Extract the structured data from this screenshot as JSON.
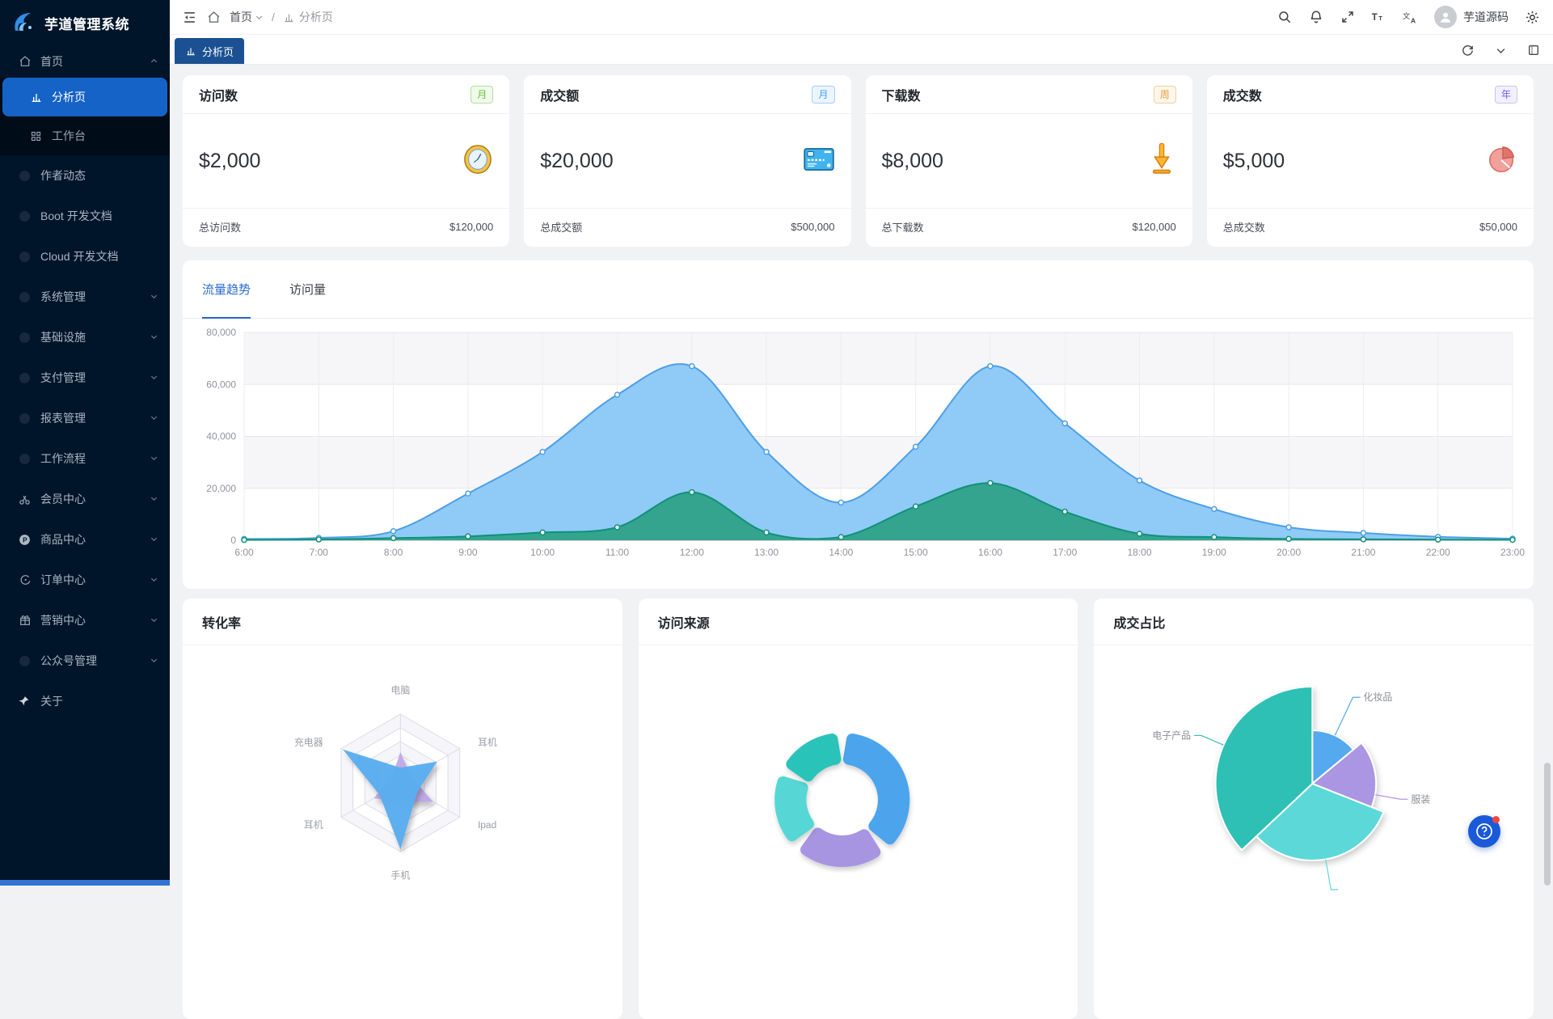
{
  "app": {
    "title": "芋道管理系统"
  },
  "header": {
    "breadcrumb": {
      "home": "首页",
      "separator": "/",
      "current": "分析页"
    },
    "user_name": "芋道源码"
  },
  "tabbar": {
    "active_tab": "分析页"
  },
  "sidebar": {
    "items": [
      {
        "label": "首页",
        "icon": "home",
        "chevron": "up",
        "expanded": true,
        "children": [
          {
            "label": "分析页",
            "icon": "chart",
            "active": true
          },
          {
            "label": "工作台",
            "icon": "grid"
          }
        ]
      },
      {
        "label": "作者动态",
        "icon": "dot"
      },
      {
        "label": "Boot 开发文档",
        "icon": "dot"
      },
      {
        "label": "Cloud 开发文档",
        "icon": "dot"
      },
      {
        "label": "系统管理",
        "icon": "dot",
        "chevron": "down"
      },
      {
        "label": "基础设施",
        "icon": "dot",
        "chevron": "down"
      },
      {
        "label": "支付管理",
        "icon": "dot",
        "chevron": "down"
      },
      {
        "label": "报表管理",
        "icon": "dot",
        "chevron": "down"
      },
      {
        "label": "工作流程",
        "icon": "dot",
        "chevron": "down"
      },
      {
        "label": "会员中心",
        "icon": "member",
        "chevron": "down"
      },
      {
        "label": "商品中心",
        "icon": "product",
        "chevron": "down"
      },
      {
        "label": "订单中心",
        "icon": "order",
        "chevron": "down"
      },
      {
        "label": "营销中心",
        "icon": "marketing",
        "chevron": "down"
      },
      {
        "label": "公众号管理",
        "icon": "dot",
        "chevron": "down"
      },
      {
        "label": "关于",
        "icon": "pin"
      }
    ]
  },
  "stat_cards": [
    {
      "title": "访问数",
      "badge": "月",
      "badge_fg": "#67c23a",
      "badge_bg": "#f0f9eb",
      "badge_bd": "#b3e19d",
      "value": "$2,000",
      "icon": "clock-icon",
      "footer_label": "总访问数",
      "footer_value": "$120,000"
    },
    {
      "title": "成交额",
      "badge": "月",
      "badge_fg": "#409eff",
      "badge_bg": "#ecf5ff",
      "badge_bd": "#a0cfff",
      "value": "$20,000",
      "icon": "bank-card-icon",
      "footer_label": "总成交额",
      "footer_value": "$500,000"
    },
    {
      "title": "下载数",
      "badge": "周",
      "badge_fg": "#e6a23c",
      "badge_bg": "#fdf6ec",
      "badge_bd": "#f3d19e",
      "value": "$8,000",
      "icon": "download-icon",
      "footer_label": "总下载数",
      "footer_value": "$120,000"
    },
    {
      "title": "成交数",
      "badge": "年",
      "badge_fg": "#7a5af8",
      "badge_bg": "#f3f0fe",
      "badge_bd": "#cdc0f6",
      "value": "$5,000",
      "icon": "pie-icon",
      "footer_label": "总成交数",
      "footer_value": "$50,000"
    }
  ],
  "trend": {
    "tabs": [
      "流量趋势",
      "访问量"
    ],
    "active_index": 0
  },
  "panels": [
    {
      "title": "转化率"
    },
    {
      "title": "访问来源"
    },
    {
      "title": "成交占比"
    }
  ],
  "fab": {
    "label": "?"
  },
  "chart_data": [
    {
      "id": "traffic-trend",
      "type": "area",
      "x": [
        "6:00",
        "7:00",
        "8:00",
        "9:00",
        "10:00",
        "11:00",
        "12:00",
        "13:00",
        "14:00",
        "15:00",
        "16:00",
        "17:00",
        "18:00",
        "19:00",
        "20:00",
        "21:00",
        "22:00",
        "23:00"
      ],
      "ylim": [
        0,
        80000
      ],
      "yticks": [
        0,
        20000,
        40000,
        60000,
        80000
      ],
      "grid": true,
      "series": [
        {
          "name": "visits-blue",
          "line": "#4d9fe8",
          "fill": "#8ac7f5",
          "opacity": 0.95,
          "values": [
            500,
            900,
            3500,
            18000,
            34000,
            56000,
            67000,
            34000,
            14500,
            36000,
            67000,
            45000,
            23000,
            12000,
            5000,
            2800,
            1300,
            600
          ]
        },
        {
          "name": "deals-teal",
          "line": "#0f9179",
          "fill": "#2fa189",
          "opacity": 0.95,
          "values": [
            100,
            300,
            800,
            1500,
            3000,
            5000,
            18500,
            3000,
            1200,
            13000,
            22000,
            11000,
            2500,
            1200,
            500,
            350,
            250,
            150
          ]
        }
      ]
    },
    {
      "id": "conversion-radar",
      "type": "radar",
      "max": 100,
      "axes": [
        "电脑",
        "耳机",
        "Ipad",
        "手机",
        "耳机",
        "充电器"
      ],
      "series": [
        {
          "name": "purple",
          "color": "#b9a2e6",
          "opacity": 0.85,
          "values": [
            45,
            18,
            55,
            28,
            45,
            15
          ]
        },
        {
          "name": "blue",
          "color": "#58aeef",
          "opacity": 0.96,
          "values": [
            22,
            62,
            28,
            97,
            35,
            97
          ]
        }
      ]
    },
    {
      "id": "visit-source-donut",
      "type": "pie",
      "subtype": "donut",
      "segments": [
        {
          "value": 37,
          "color": "#4ba4ec"
        },
        {
          "value": 23,
          "color": "#a795e2"
        },
        {
          "value": 19,
          "color": "#57d7d5"
        },
        {
          "value": 17,
          "color": "#2cc3ba"
        }
      ]
    },
    {
      "id": "deal-share-pie",
      "type": "pie",
      "subtype": "rose",
      "slices": [
        {
          "label": "化妆品",
          "value": 14,
          "radius": 66,
          "color": "#55a9ee",
          "leader_len": 52
        },
        {
          "label": "服装",
          "value": 17,
          "radius": 79,
          "color": "#ab96e3",
          "leader_angle": 100,
          "leader_len": 32
        },
        {
          "label": "",
          "value": 32,
          "radius": 95,
          "color": "#5cd8d8",
          "leader_angle": 170,
          "leader_len": 38
        },
        {
          "label": "电子产品",
          "value": 37,
          "radius": 120,
          "color": "#2fc0b4",
          "leader_len": 30
        }
      ]
    }
  ]
}
